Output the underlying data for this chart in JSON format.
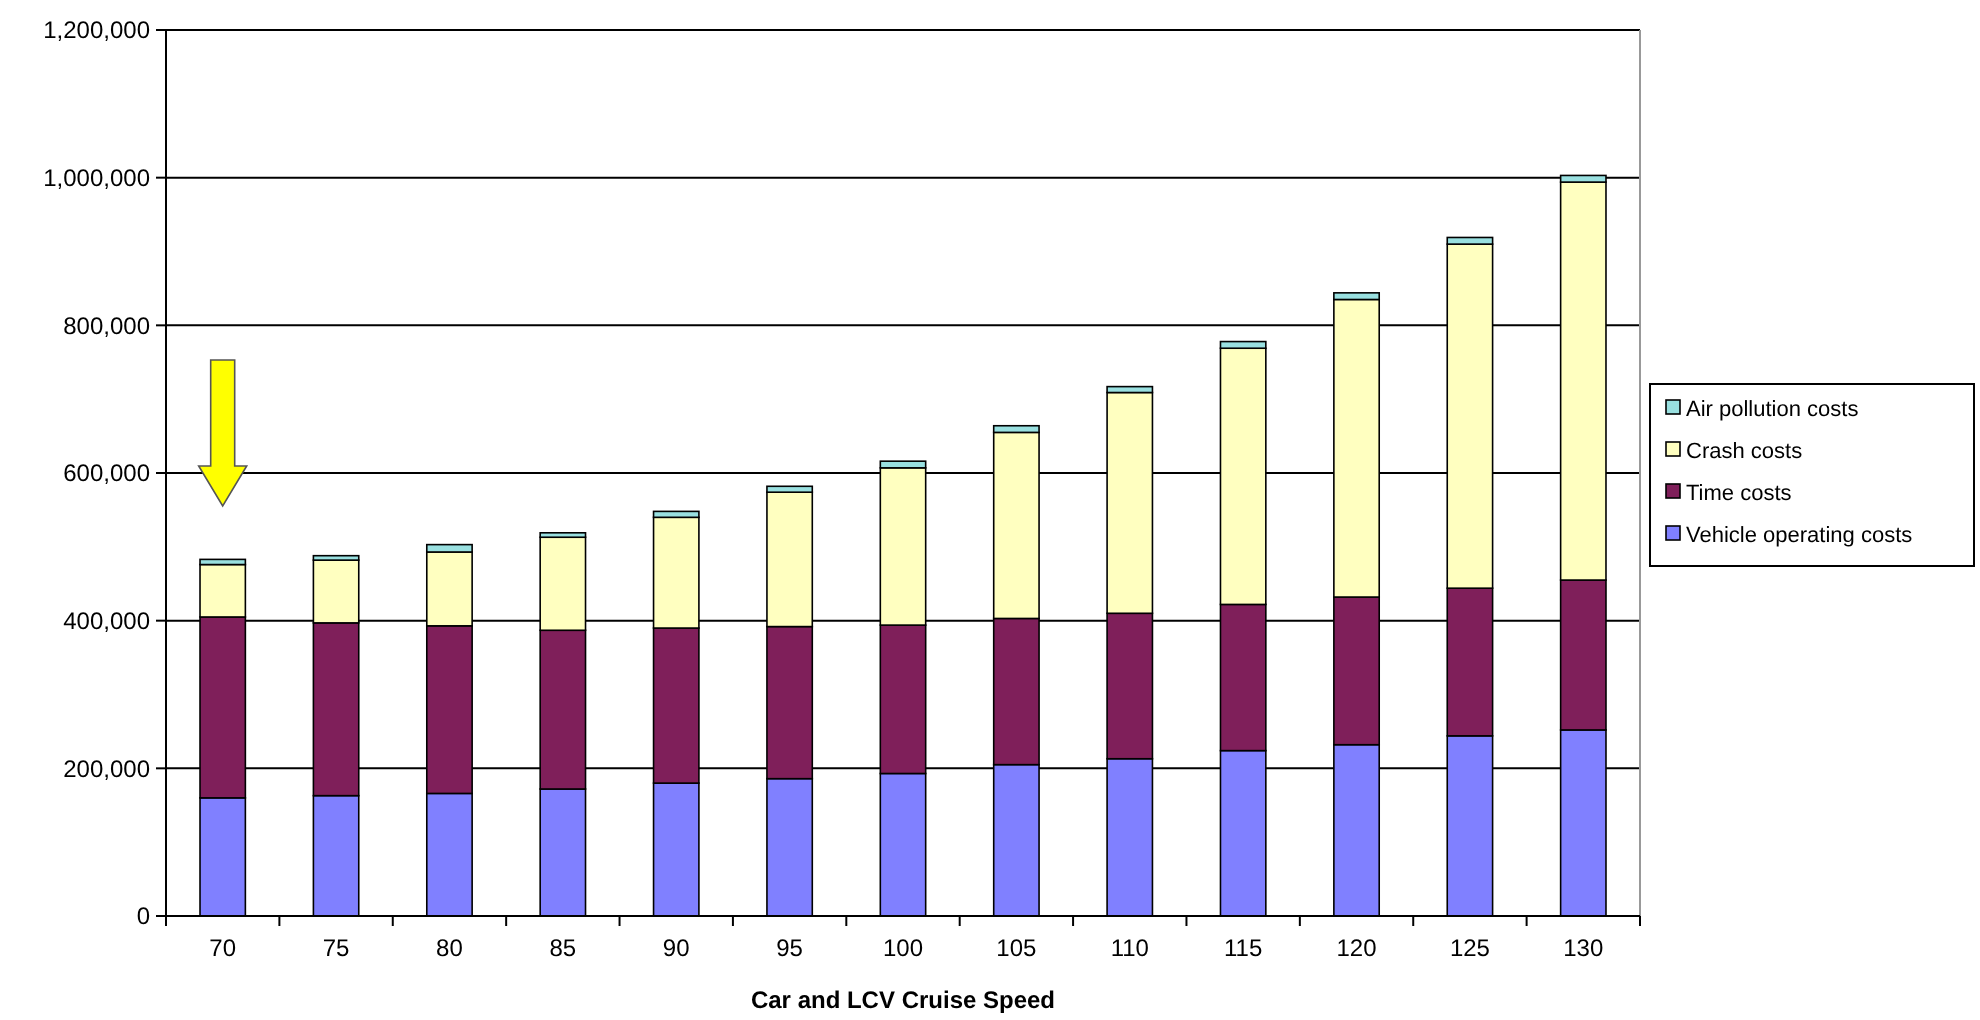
{
  "chart_data": {
    "type": "bar",
    "stacked": true,
    "xlabel": "Car and LCV Cruise Speed",
    "categories": [
      "70",
      "75",
      "80",
      "85",
      "90",
      "95",
      "100",
      "105",
      "110",
      "115",
      "120",
      "125",
      "130"
    ],
    "series": [
      {
        "name": "Vehicle operating costs",
        "color": "#8080ff",
        "values": [
          160000,
          163000,
          166000,
          172000,
          180000,
          186000,
          193000,
          205000,
          213000,
          224000,
          232000,
          244000,
          252000
        ]
      },
      {
        "name": "Time costs",
        "color": "#7f1f5a",
        "values": [
          245000,
          234000,
          227000,
          215000,
          210000,
          206000,
          201000,
          198000,
          197000,
          198000,
          200000,
          200000,
          203000
        ]
      },
      {
        "name": "Crash costs",
        "color": "#ffffc0",
        "values": [
          71000,
          85000,
          100000,
          126000,
          150000,
          182000,
          213000,
          252000,
          299000,
          347000,
          403000,
          466000,
          539000
        ]
      },
      {
        "name": "Air pollution costs",
        "color": "#99e0e0",
        "values": [
          7000,
          6000,
          10000,
          6000,
          8000,
          8000,
          9000,
          9000,
          8000,
          9000,
          9000,
          9000,
          9000
        ]
      }
    ],
    "ylim": [
      0,
      1200000
    ],
    "yticks": [
      0,
      {
        "value": 200000,
        "label": "200,000"
      },
      {
        "value": 400000,
        "label": "400,000"
      },
      {
        "value": 600000,
        "label": "600,000"
      },
      {
        "value": 800000,
        "label": "800,000"
      },
      {
        "value": 1000000,
        "label": "1,000,000"
      },
      {
        "value": 1200000,
        "label": "1,200,000"
      }
    ],
    "grid": "y",
    "legend": "right"
  }
}
